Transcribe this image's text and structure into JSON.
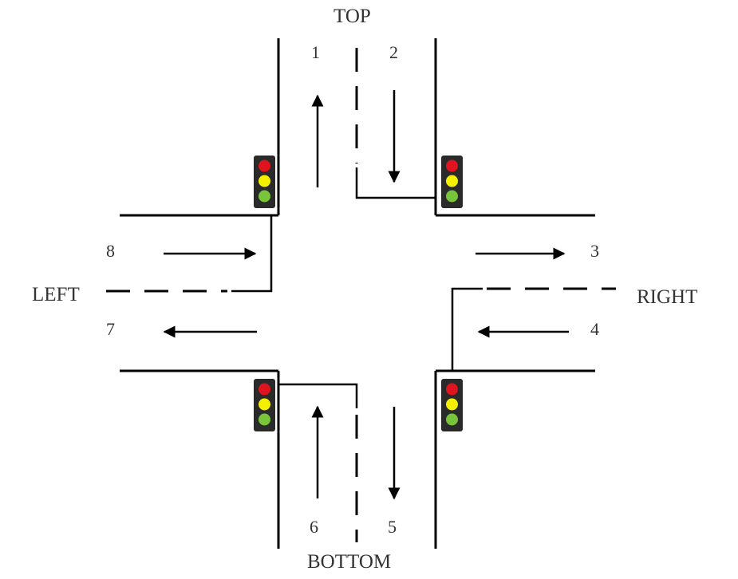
{
  "directions": {
    "top": "TOP",
    "bottom": "BOTTOM",
    "left": "LEFT",
    "right": "RIGHT"
  },
  "lanes": {
    "l1": "1",
    "l2": "2",
    "l3": "3",
    "l4": "4",
    "l5": "5",
    "l6": "6",
    "l7": "7",
    "l8": "8"
  },
  "colors": {
    "line": "#000000",
    "housing": "#2a2a2a",
    "red": "#e0141e",
    "yellow": "#f5f000",
    "green": "#78c43a"
  }
}
